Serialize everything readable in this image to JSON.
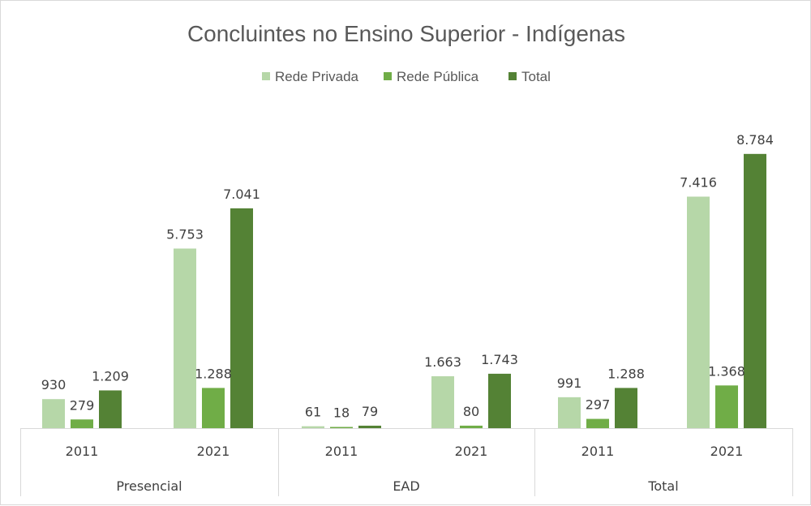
{
  "chart_data": {
    "type": "bar",
    "title": "Concluintes no Ensino Superior - Indígenas",
    "legend_position": "top",
    "grid": false,
    "ylim": [
      0,
      10000
    ],
    "groups": [
      {
        "name": "Presencial",
        "categories": [
          "2011",
          "2021"
        ]
      },
      {
        "name": "EAD",
        "categories": [
          "2011",
          "2021"
        ]
      },
      {
        "name": "Total",
        "categories": [
          "2011",
          "2021"
        ]
      }
    ],
    "series": [
      {
        "name": "Rede Privada",
        "color": "#b6d7a8",
        "values": [
          930,
          5753,
          61,
          1663,
          991,
          7416
        ],
        "labels": [
          "930",
          "5.753",
          "61",
          "1.663",
          "991",
          "7.416"
        ]
      },
      {
        "name": "Rede Pública",
        "color": "#70ad47",
        "values": [
          279,
          1288,
          18,
          80,
          297,
          1368
        ],
        "labels": [
          "279",
          "1.288",
          "18",
          "80",
          "297",
          "1.368"
        ]
      },
      {
        "name": "Total",
        "color": "#548235",
        "values": [
          1209,
          7041,
          79,
          1743,
          1288,
          8784
        ],
        "labels": [
          "1.209",
          "7.041",
          "79",
          "1.743",
          "1.288",
          "8.784"
        ]
      }
    ]
  }
}
